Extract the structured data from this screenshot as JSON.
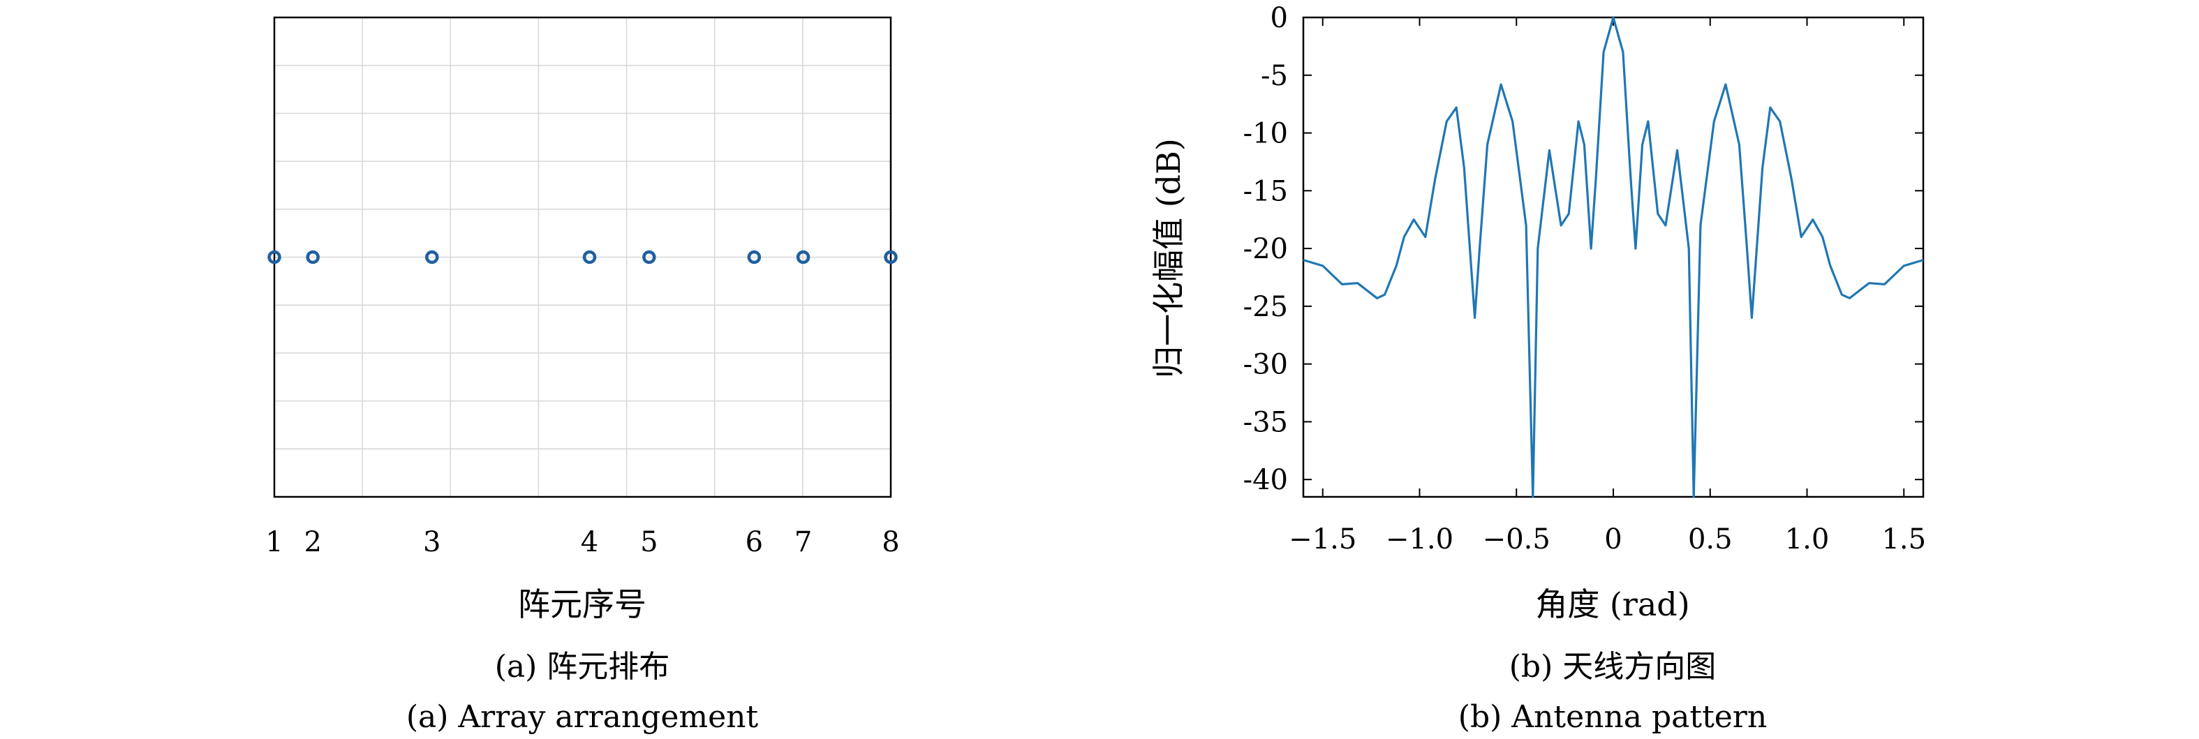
{
  "captions": {
    "a_cn": "(a) 阵元排布",
    "a_en": "(a) Array arrangement",
    "b_cn": "(b) 天线方向图",
    "b_en": "(b) Antenna pattern"
  },
  "chart_data": [
    {
      "type": "scatter",
      "xlabel": "阵元序号",
      "ylabel": "",
      "title": "",
      "grid": true,
      "tick_labels": [
        "1",
        "2",
        "3",
        "4",
        "5",
        "6",
        "7",
        "8"
      ],
      "x": [
        0.0,
        0.55,
        2.25,
        4.5,
        5.35,
        6.85,
        7.55,
        8.8
      ],
      "y": [
        0,
        0,
        0,
        0,
        0,
        0,
        0,
        0
      ],
      "xlim": [
        0.0,
        8.8
      ],
      "ylim": [
        -1,
        1
      ],
      "marker_color": "#1f5fa0"
    },
    {
      "type": "line",
      "xlabel": "角度 (rad)",
      "ylabel": "归一化幅值 (dB)",
      "title": "",
      "grid": false,
      "xlim": [
        -1.6,
        1.6
      ],
      "ylim": [
        -41.5,
        0
      ],
      "xticks": [
        -1.5,
        -1.0,
        -0.5,
        0,
        0.5,
        1.0,
        1.5
      ],
      "xtick_labels": [
        "−1.5",
        "−1.0",
        "−0.5",
        "0",
        "0.5",
        "1.0",
        "1.5"
      ],
      "yticks": [
        0,
        -5,
        -10,
        -15,
        -20,
        -25,
        -30,
        -35,
        -40
      ],
      "ytick_labels": [
        "0",
        "-5",
        "-10",
        "-15",
        "-20",
        "-25",
        "-30",
        "-35",
        "-40"
      ],
      "line_color": "#1f77b4",
      "series": [
        {
          "x": [
            0,
            0.05,
            0.09,
            0.115,
            0.15,
            0.18,
            0.23,
            0.27,
            0.33,
            0.39,
            0.415,
            0.45,
            0.52,
            0.58,
            0.65,
            0.69,
            0.715,
            0.77,
            0.81,
            0.86,
            0.92,
            0.97,
            1.03,
            1.08,
            1.12,
            1.18,
            1.22,
            1.32,
            1.4,
            1.5,
            1.6
          ],
          "y": [
            0,
            -3,
            -14,
            -20,
            -11,
            -9,
            -17,
            -18,
            -11.5,
            -20,
            -41.5,
            -18,
            -9,
            -5.8,
            -11,
            -20,
            -26,
            -13,
            -7.8,
            -9,
            -14,
            -19,
            -17.5,
            -19,
            -21.5,
            -24,
            -24.3,
            -23,
            -23.1,
            -21.5,
            -21
          ]
        }
      ]
    }
  ]
}
